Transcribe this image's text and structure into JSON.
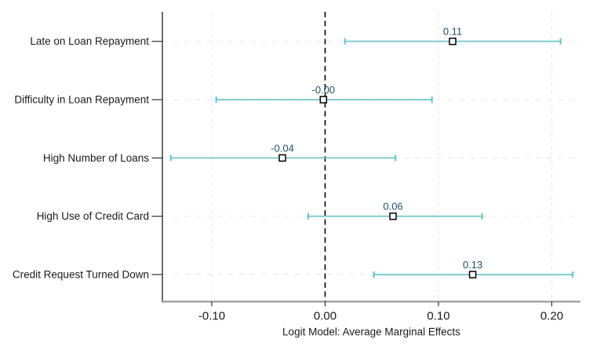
{
  "chart_data": {
    "type": "scatter",
    "subtype": "coefficient-plot-with-ci",
    "title": "",
    "xlabel": "Logit Model: Average Marginal Effects",
    "ylabel": "",
    "legend": "none",
    "grid": true,
    "zero_line": 0.0,
    "xlim": [
      -0.1436,
      0.2253
    ],
    "x_ticks": [
      {
        "value": -0.1,
        "label": "-0.10"
      },
      {
        "value": 0.0,
        "label": "0.00"
      },
      {
        "value": 0.1,
        "label": "0.10"
      },
      {
        "value": 0.2,
        "label": "0.20"
      }
    ],
    "points": [
      {
        "category": "Late on Loan Repayment",
        "estimate": 0.1125,
        "estimate_label": "0.11",
        "ci_low": 0.0174,
        "ci_high": 0.2077
      },
      {
        "category": "Difficulty in Loan Repayment",
        "estimate": -0.0015,
        "estimate_label": "-0.00",
        "ci_low": -0.0961,
        "ci_high": 0.0943
      },
      {
        "category": "High Number of Loans",
        "estimate": -0.0377,
        "estimate_label": "-0.04",
        "ci_low": -0.1362,
        "ci_high": 0.0621
      },
      {
        "category": "High Use of Credit Card",
        "estimate": 0.0599,
        "estimate_label": "0.06",
        "ci_low": -0.0149,
        "ci_high": 0.1385
      },
      {
        "category": "Credit Request Turned Down",
        "estimate": 0.1302,
        "estimate_label": "0.13",
        "ci_low": 0.043,
        "ci_high": 0.2185
      }
    ],
    "colors": {
      "ci_line": "#79c9ce",
      "ci_cap": "#5fc3c9",
      "marker_fill": "#ffffff",
      "marker_border": "#000000",
      "estimate_label": "#1d4f63",
      "gridline": "#ebebeb",
      "zero_line": "#000000",
      "x_axis_line": "#8f8f8f",
      "y_axis_line": "#2f2f2f",
      "tick": "#303030",
      "text": "#1a1a1a",
      "background": "#ffffff"
    }
  }
}
